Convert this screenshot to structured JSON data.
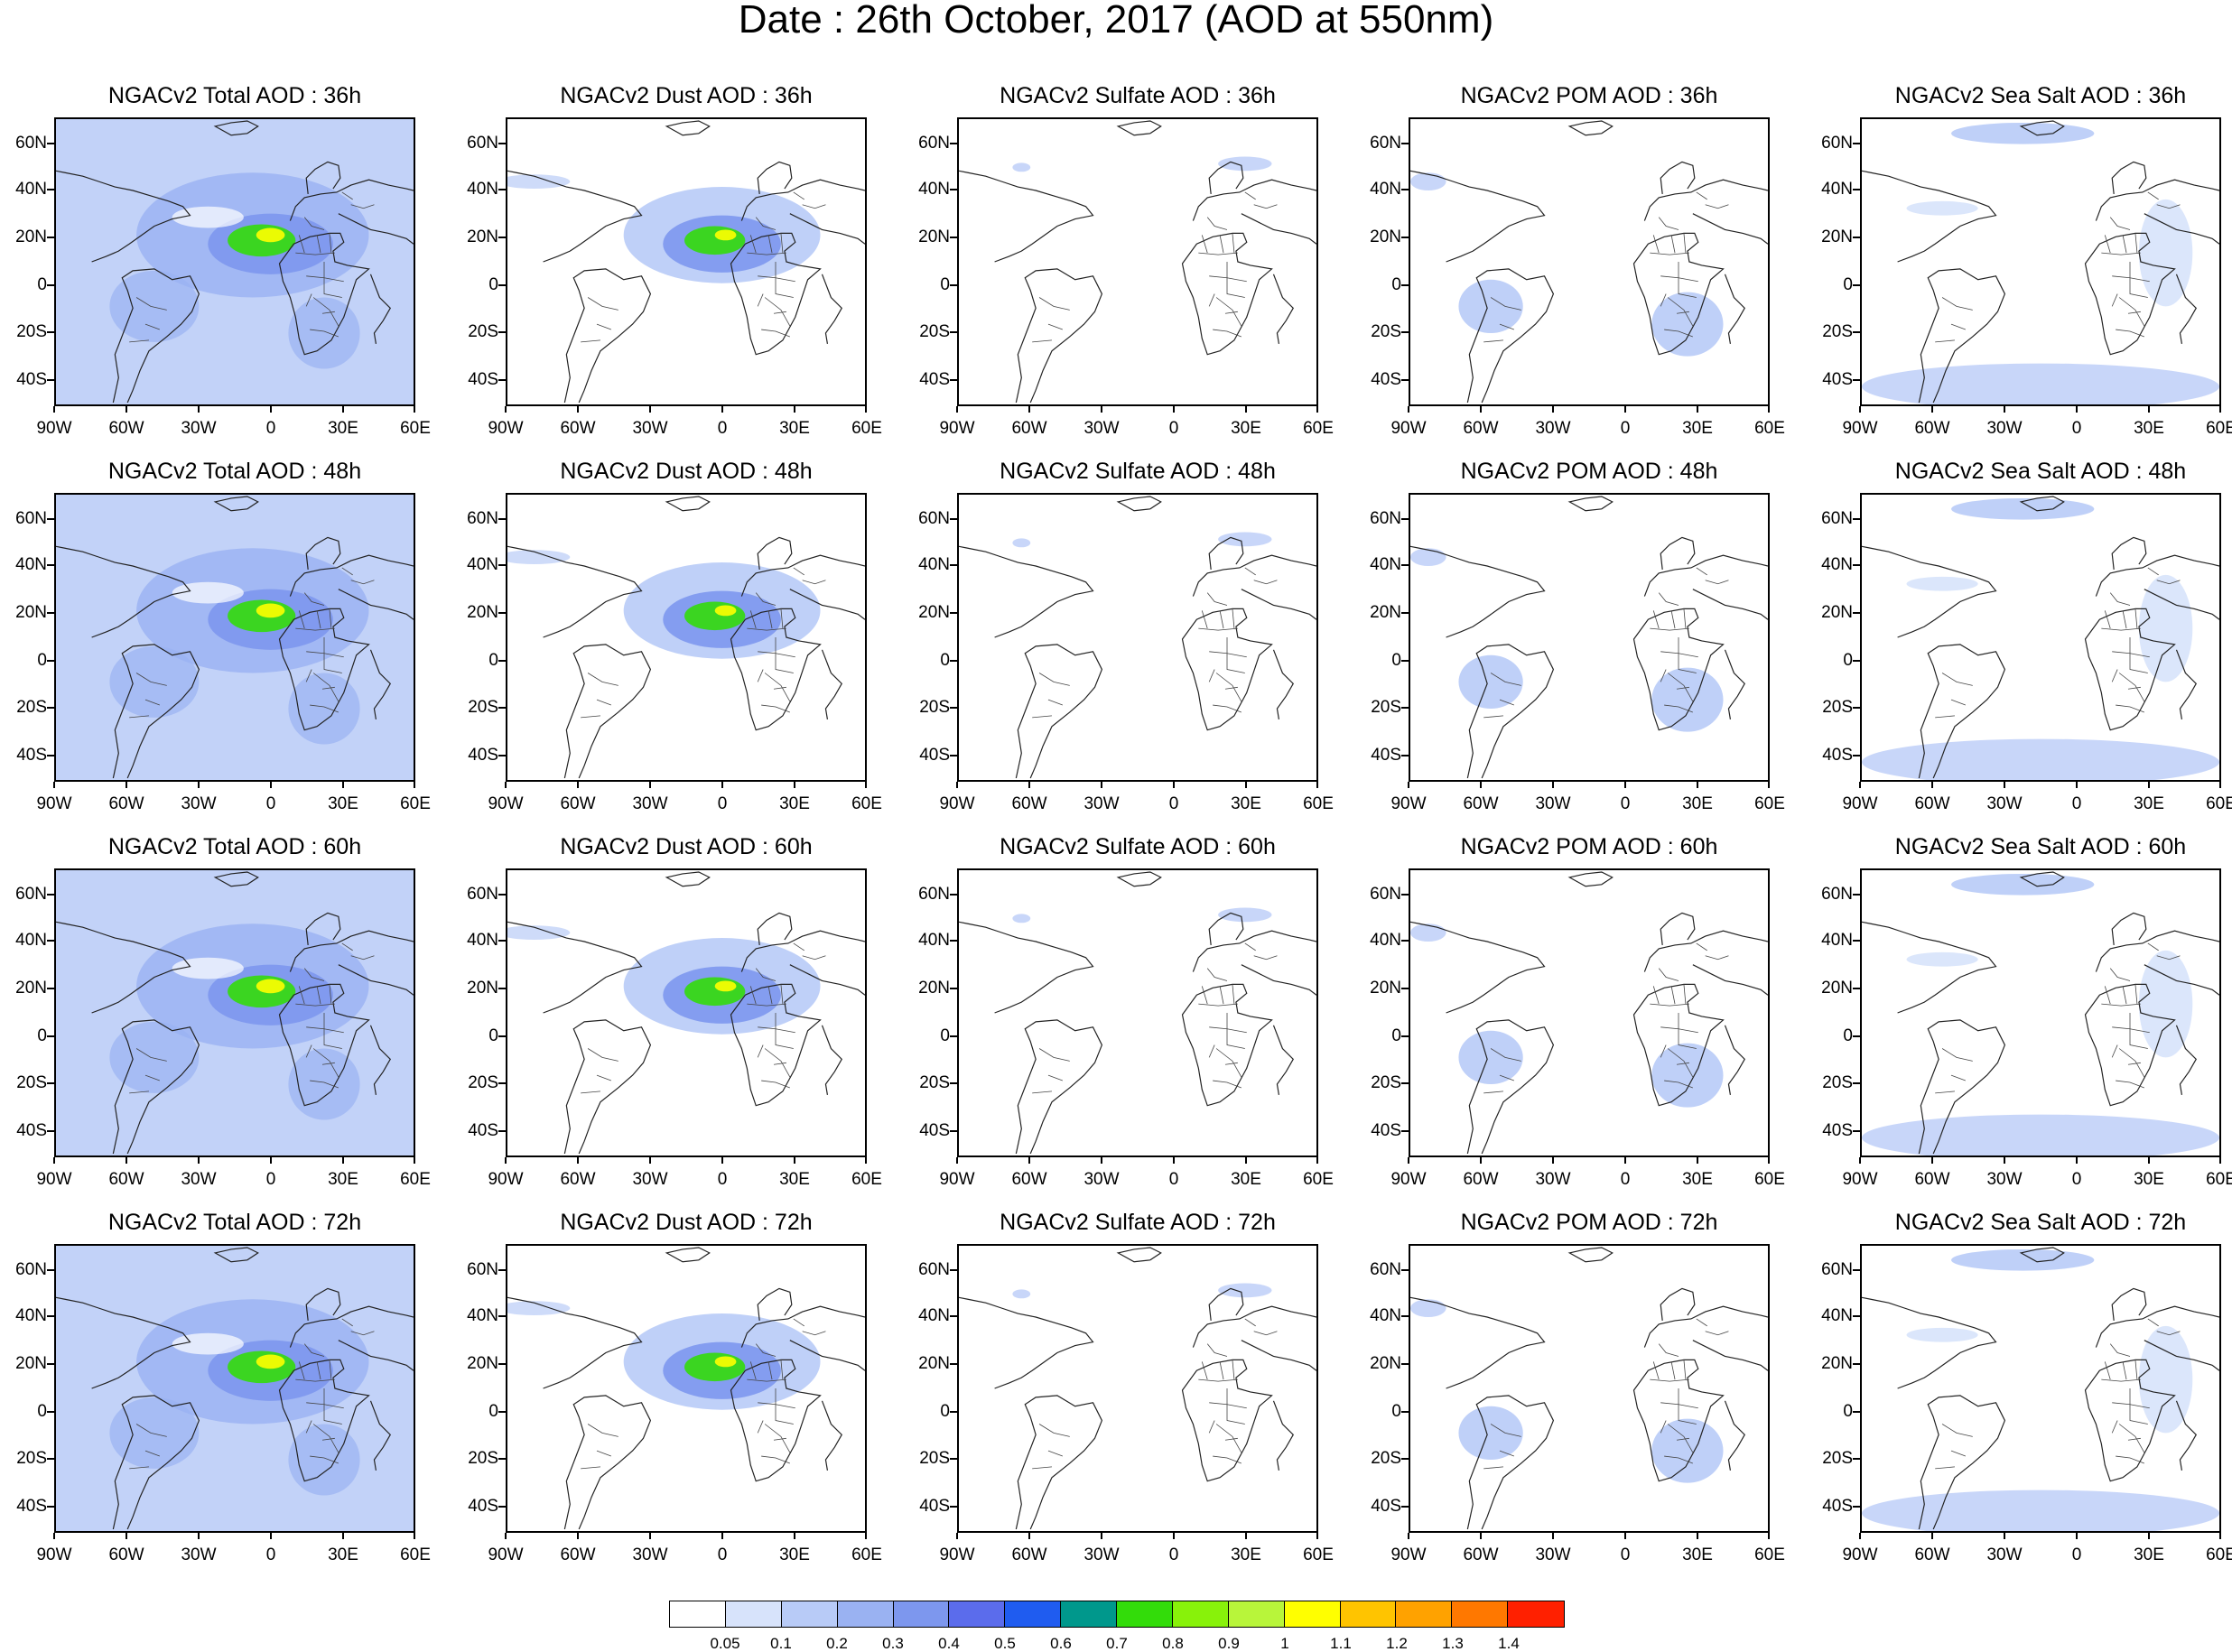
{
  "title": "Date : 26th October, 2017 (AOD at 550nm)",
  "panels": [
    [
      "NGACv2 Total AOD : 36h",
      "NGACv2 Dust AOD : 36h",
      "NGACv2 Sulfate AOD : 36h",
      "NGACv2 POM AOD : 36h",
      "NGACv2 Sea Salt AOD : 36h"
    ],
    [
      "NGACv2 Total AOD : 48h",
      "NGACv2 Dust AOD : 48h",
      "NGACv2 Sulfate AOD : 48h",
      "NGACv2 POM AOD : 48h",
      "NGACv2 Sea Salt AOD : 48h"
    ],
    [
      "NGACv2 Total AOD : 60h",
      "NGACv2 Dust AOD : 60h",
      "NGACv2 Sulfate AOD : 60h",
      "NGACv2 POM AOD : 60h",
      "NGACv2 Sea Salt AOD : 60h"
    ],
    [
      "NGACv2 Total AOD : 72h",
      "NGACv2 Dust AOD : 72h",
      "NGACv2 Sulfate AOD : 72h",
      "NGACv2 POM AOD : 72h",
      "NGACv2 Sea Salt  AOD : 72h"
    ]
  ],
  "lat_labels": [
    "60N",
    "40N",
    "20N",
    "0",
    "20S",
    "40S"
  ],
  "lon_labels": [
    "90W",
    "60W",
    "30W",
    "0",
    "30E",
    "60E"
  ],
  "colorbar": {
    "colors": [
      "#ffffff",
      "#d7e3fb",
      "#b8cbf7",
      "#9ab2f2",
      "#7d97ee",
      "#5b6cec",
      "#1f5cf0",
      "#00988c",
      "#33dc0a",
      "#88f20a",
      "#b8f53a",
      "#ffff00",
      "#ffc400",
      "#ffa200",
      "#ff7800",
      "#ff2000"
    ],
    "labels": [
      "0.05",
      "0.1",
      "0.2",
      "0.3",
      "0.4",
      "0.5",
      "0.6",
      "0.7",
      "0.8",
      "0.9",
      "1",
      "1.1",
      "1.2",
      "1.3",
      "1.4"
    ]
  }
}
